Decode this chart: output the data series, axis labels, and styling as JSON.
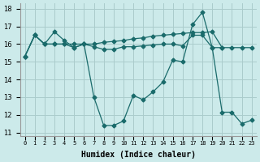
{
  "xlabel": "Humidex (Indice chaleur)",
  "bg_color": "#cceaea",
  "grid_color": "#aacccc",
  "line_color": "#1a6b6b",
  "xlim": [
    -0.5,
    23.5
  ],
  "ylim": [
    10.8,
    18.3
  ],
  "yticks": [
    11,
    12,
    13,
    14,
    15,
    16,
    17,
    18
  ],
  "line1_x": [
    0,
    1,
    2,
    3,
    4,
    5,
    6,
    7,
    8,
    9,
    10,
    11,
    12,
    13,
    14,
    15,
    16,
    17,
    18,
    19,
    20,
    21,
    22,
    23
  ],
  "line1_y": [
    15.3,
    16.5,
    16.0,
    16.7,
    16.2,
    15.8,
    16.0,
    13.0,
    11.4,
    11.4,
    11.65,
    13.1,
    12.85,
    13.3,
    13.85,
    15.1,
    15.0,
    17.1,
    17.8,
    15.8,
    12.15,
    12.15,
    11.5,
    11.7
  ],
  "line2_x": [
    0,
    1,
    2,
    3,
    4,
    5,
    6,
    7,
    8,
    9,
    10,
    11,
    12,
    13,
    14,
    15,
    16,
    17,
    18,
    19,
    20
  ],
  "line2_y": [
    15.3,
    16.5,
    16.0,
    16.0,
    16.0,
    16.0,
    16.0,
    16.0,
    16.1,
    16.15,
    16.2,
    16.3,
    16.35,
    16.45,
    16.5,
    16.55,
    16.6,
    16.65,
    16.65,
    16.7,
    15.8
  ],
  "line3_x": [
    0,
    1,
    2,
    3,
    4,
    5,
    6,
    7,
    8,
    9,
    10,
    11,
    12,
    13,
    14,
    15,
    16,
    17,
    18,
    19,
    20,
    21,
    22,
    23
  ],
  "line3_y": [
    15.3,
    16.5,
    16.0,
    16.0,
    16.0,
    15.8,
    16.0,
    15.85,
    15.7,
    15.7,
    15.85,
    15.85,
    15.9,
    15.95,
    16.0,
    16.0,
    15.9,
    16.5,
    16.5,
    15.8,
    15.8,
    15.8,
    15.8,
    15.8
  ]
}
